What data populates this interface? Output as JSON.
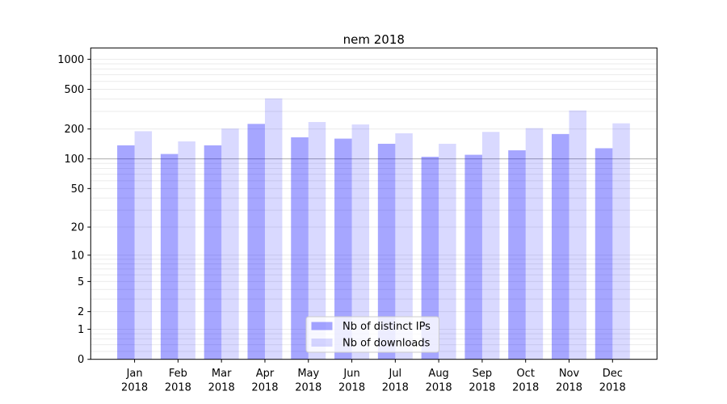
{
  "title": "nem 2018",
  "colors": {
    "bar_distinct_ips": "rgba(0,0,255,0.35)",
    "bar_downloads": "rgba(0,0,255,0.15)",
    "grid_minor": "#ebebeb",
    "grid_emphasis": "#ababab",
    "axis": "#000000",
    "text": "#000000",
    "legend_bg": "rgba(255,255,255,0.8)",
    "legend_border": "#cccccc"
  },
  "chart_data": {
    "type": "bar",
    "title": "nem 2018",
    "categories": [
      "Jan 2018",
      "Feb 2018",
      "Mar 2018",
      "Apr 2018",
      "May 2018",
      "Jun 2018",
      "Jul 2018",
      "Aug 2018",
      "Sep 2018",
      "Oct 2018",
      "Nov 2018",
      "Dec 2018"
    ],
    "x_tick_labels": [
      {
        "line1": "Jan",
        "line2": "2018"
      },
      {
        "line1": "Feb",
        "line2": "2018"
      },
      {
        "line1": "Mar",
        "line2": "2018"
      },
      {
        "line1": "Apr",
        "line2": "2018"
      },
      {
        "line1": "May",
        "line2": "2018"
      },
      {
        "line1": "Jun",
        "line2": "2018"
      },
      {
        "line1": "Jul",
        "line2": "2018"
      },
      {
        "line1": "Aug",
        "line2": "2018"
      },
      {
        "line1": "Sep",
        "line2": "2018"
      },
      {
        "line1": "Oct",
        "line2": "2018"
      },
      {
        "line1": "Nov",
        "line2": "2018"
      },
      {
        "line1": "Dec",
        "line2": "2018"
      }
    ],
    "series": [
      {
        "name": "Nb of distinct IPs",
        "color": "rgba(0,0,255,0.35)",
        "values": [
          137,
          112,
          137,
          225,
          165,
          160,
          142,
          105,
          110,
          122,
          178,
          128
        ]
      },
      {
        "name": "Nb of downloads",
        "color": "rgba(0,0,255,0.15)",
        "values": [
          190,
          150,
          202,
          405,
          235,
          222,
          181,
          142,
          187,
          204,
          307,
          228
        ]
      }
    ],
    "yscale": "log1p",
    "y_ticks": [
      0,
      1,
      2,
      5,
      10,
      20,
      50,
      100,
      200,
      500,
      1000
    ],
    "ylim": [
      0,
      1300
    ],
    "xlabel": "",
    "ylabel": "",
    "grid": true,
    "emphasized_gridline_value": 100,
    "legend_position": "lower center"
  }
}
